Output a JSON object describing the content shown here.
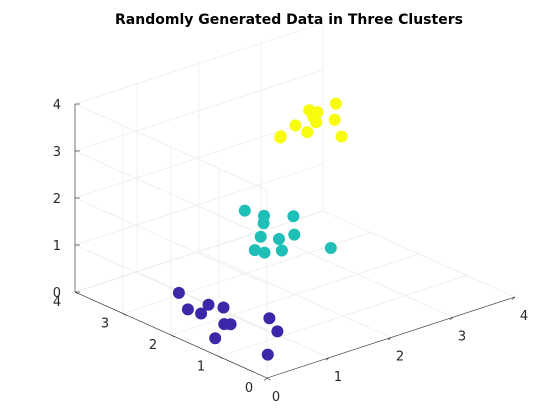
{
  "chart_data": {
    "type": "scatter",
    "title": "Randomly Generated Data in Three Clusters",
    "xlabel": "",
    "ylabel": "",
    "zlabel": "",
    "xlim": [
      0,
      4
    ],
    "ylim": [
      0,
      4
    ],
    "zlim": [
      0,
      4
    ],
    "x_ticks": [
      "0",
      "1",
      "2",
      "3",
      "4"
    ],
    "y_ticks": [
      "0",
      "1",
      "2",
      "3",
      "4"
    ],
    "z_ticks": [
      "0",
      "1",
      "2",
      "3",
      "4"
    ],
    "grid": true,
    "colors": {
      "cluster1": "#3e26a8",
      "cluster2": "#1fbfb8",
      "cluster3": "#f9fb0e",
      "gridline": "#e6e6e6",
      "axis": "#262626"
    },
    "series": [
      {
        "points": [
          [
            0.26,
            0.32,
            0.24
          ],
          [
            0.42,
            1.3,
            0.37
          ],
          [
            0.72,
            0.88,
            0.56
          ],
          [
            0.54,
            0.48,
            0.54
          ],
          [
            0.45,
            1.8,
            0.54
          ],
          [
            0.23,
            1.67,
            0.51
          ],
          [
            0.41,
            1.42,
            0.32
          ],
          [
            0.46,
            2.43,
            0.5
          ],
          [
            0.28,
            2.01,
            0.42
          ],
          [
            0.14,
            1.26,
            0.21
          ],
          [
            0.77,
            1.9,
            0.3
          ]
        ]
      },
      {
        "points": [
          [
            1.13,
            1.59,
            1.79
          ],
          [
            1.15,
            1.74,
            1.43
          ],
          [
            1.61,
            1.53,
            2.05
          ],
          [
            1.4,
            1.24,
            1.88
          ],
          [
            1.84,
            2.84,
            1.47
          ],
          [
            1.5,
            2.0,
            1.89
          ],
          [
            1.37,
            1.84,
            1.86
          ],
          [
            1.13,
            1.15,
            1.7
          ],
          [
            1.54,
            0.66,
            1.8
          ],
          [
            1.44,
            1.61,
            1.6
          ],
          [
            1.09,
            1.46,
            1.53
          ]
        ]
      },
      {
        "points": [
          [
            2.47,
            2.14,
            3.61
          ],
          [
            2.58,
            2.37,
            3.36
          ],
          [
            2.69,
            1.92,
            3.1
          ],
          [
            2.75,
            2.53,
            3.1
          ],
          [
            2.54,
            2.69,
            3.05
          ],
          [
            2.71,
            2.09,
            3.37
          ],
          [
            2.85,
            2.8,
            3.19
          ],
          [
            2.39,
            2.8,
            2.83
          ],
          [
            2.46,
            2.9,
            2.73
          ],
          [
            2.57,
            2.48,
            2.99
          ],
          [
            2.97,
            2.4,
            3.46
          ]
        ]
      }
    ]
  }
}
